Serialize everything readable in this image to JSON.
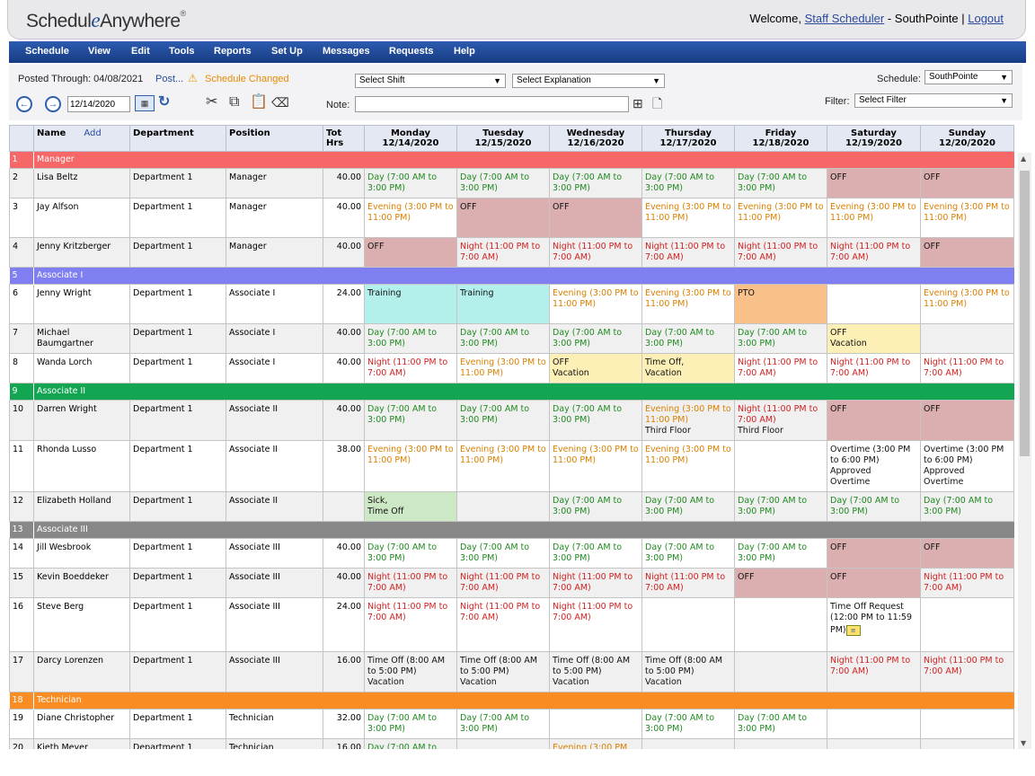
{
  "app": {
    "logo_pre": "Schedul",
    "logo_e": "e",
    "logo_post": "Anywhere",
    "logo_reg": "®",
    "welcome_prefix": "Welcome, ",
    "user": "Staff Scheduler",
    "location_text": " - SouthPointe | ",
    "logout": "Logout"
  },
  "menu": [
    "Schedule",
    "View",
    "Edit",
    "Tools",
    "Reports",
    "Set Up",
    "Messages",
    "Requests",
    "Help"
  ],
  "toolbar": {
    "posted_through": "Posted Through: 04/08/2021",
    "post_link": "Post...",
    "warning_icon": "warning-icon",
    "schedule_changed": "Schedule Changed",
    "select_shift": "Select Shift",
    "select_explanation": "Select Explanation",
    "schedule_label": "Schedule:",
    "schedule_value": "SouthPointe",
    "date_value": "12/14/2020",
    "note_label": "Note:",
    "filter_label": "Filter:",
    "filter_value": "Select Filter"
  },
  "columns": {
    "name": "Name",
    "add": "Add",
    "department": "Department",
    "position": "Position",
    "tot_hrs": "Tot Hrs",
    "days": [
      {
        "day": "Monday",
        "date": "12/14/2020"
      },
      {
        "day": "Tuesday",
        "date": "12/15/2020"
      },
      {
        "day": "Wednesday",
        "date": "12/16/2020"
      },
      {
        "day": "Thursday",
        "date": "12/17/2020"
      },
      {
        "day": "Friday",
        "date": "12/18/2020"
      },
      {
        "day": "Saturday",
        "date": "12/19/2020"
      },
      {
        "day": "Sunday",
        "date": "12/20/2020"
      }
    ]
  },
  "colors": {
    "manager": "#f66868",
    "associate_i": "#7f7ff2",
    "associate_ii": "#13a652",
    "associate_iii": "#888888",
    "technician": "#f98d24"
  },
  "rows": [
    {
      "type": "group",
      "num": "1",
      "label": "Manager",
      "color": "#f66868"
    },
    {
      "type": "emp",
      "num": "2",
      "name": "Lisa Beltz",
      "dept": "Department 1",
      "pos": "Manager",
      "hrs": "40.00",
      "h": 32,
      "cells": [
        {
          "t": "Day (7:00 AM to 3:00 PM)",
          "c": "green"
        },
        {
          "t": "Day (7:00 AM to 3:00 PM)",
          "c": "green"
        },
        {
          "t": "Day (7:00 AM to 3:00 PM)",
          "c": "green"
        },
        {
          "t": "Day (7:00 AM to 3:00 PM)",
          "c": "green"
        },
        {
          "t": "Day (7:00 AM to 3:00 PM)",
          "c": "green"
        },
        {
          "t": "OFF",
          "c": "black",
          "bg": "off"
        },
        {
          "t": "OFF",
          "c": "black",
          "bg": "off"
        }
      ]
    },
    {
      "type": "emp",
      "num": "3",
      "name": "Jay Alfson",
      "dept": "Department 1",
      "pos": "Manager",
      "hrs": "40.00",
      "h": 44,
      "cells": [
        {
          "t": "Evening (3:00 PM to 11:00 PM)",
          "c": "orange"
        },
        {
          "t": "OFF",
          "c": "black",
          "bg": "off"
        },
        {
          "t": "OFF",
          "c": "black",
          "bg": "off"
        },
        {
          "t": "Evening (3:00 PM to 11:00 PM)",
          "c": "orange"
        },
        {
          "t": "Evening (3:00 PM to 11:00 PM)",
          "c": "orange"
        },
        {
          "t": "Evening (3:00 PM to 11:00 PM)",
          "c": "orange"
        },
        {
          "t": "Evening (3:00 PM to 11:00 PM)",
          "c": "orange"
        }
      ]
    },
    {
      "type": "emp",
      "num": "4",
      "name": "Jenny Kritzberger",
      "dept": "Department 1",
      "pos": "Manager",
      "hrs": "40.00",
      "h": 32,
      "cells": [
        {
          "t": "OFF",
          "c": "black",
          "bg": "off"
        },
        {
          "t": "Night (11:00 PM to 7:00 AM)",
          "c": "red"
        },
        {
          "t": "Night (11:00 PM to 7:00 AM)",
          "c": "red"
        },
        {
          "t": "Night (11:00 PM to 7:00 AM)",
          "c": "red"
        },
        {
          "t": "Night (11:00 PM to 7:00 AM)",
          "c": "red"
        },
        {
          "t": "Night (11:00 PM to 7:00 AM)",
          "c": "red"
        },
        {
          "t": "OFF",
          "c": "black",
          "bg": "off"
        }
      ]
    },
    {
      "type": "group",
      "num": "5",
      "label": "Associate I",
      "color": "#7f7ff2"
    },
    {
      "type": "emp",
      "num": "6",
      "name": "Jenny Wright",
      "dept": "Department 1",
      "pos": "Associate I",
      "hrs": "24.00",
      "h": 44,
      "cells": [
        {
          "t": "Training",
          "c": "black",
          "bg": "training"
        },
        {
          "t": "Training",
          "c": "black",
          "bg": "training"
        },
        {
          "t": "Evening (3:00 PM to 11:00 PM)",
          "c": "orange"
        },
        {
          "t": "Evening (3:00 PM to 11:00 PM)",
          "c": "orange"
        },
        {
          "t": "PTO",
          "c": "black",
          "bg": "pto"
        },
        {
          "t": "",
          "c": "black"
        },
        {
          "t": "Evening (3:00 PM to 11:00 PM)",
          "c": "orange"
        }
      ]
    },
    {
      "type": "emp",
      "num": "7",
      "name": "Michael Baumgartner",
      "dept": "Department 1",
      "pos": "Associate I",
      "hrs": "40.00",
      "h": 32,
      "cells": [
        {
          "t": "Day (7:00 AM to 3:00 PM)",
          "c": "green"
        },
        {
          "t": "Day (7:00 AM to 3:00 PM)",
          "c": "green"
        },
        {
          "t": "Day (7:00 AM to 3:00 PM)",
          "c": "green"
        },
        {
          "t": "Day (7:00 AM to 3:00 PM)",
          "c": "green"
        },
        {
          "t": "Day (7:00 AM to 3:00 PM)",
          "c": "green"
        },
        {
          "t": "OFF\nVacation",
          "c": "black",
          "bg": "yellow"
        },
        {
          "t": "",
          "c": "black"
        }
      ]
    },
    {
      "type": "emp",
      "num": "8",
      "name": "Wanda Lorch",
      "dept": "Department 1",
      "pos": "Associate I",
      "hrs": "40.00",
      "h": 32,
      "cells": [
        {
          "t": "Night (11:00 PM to 7:00 AM)",
          "c": "red"
        },
        {
          "t": "Evening (3:00 PM to 11:00 PM)",
          "c": "orange"
        },
        {
          "t": "OFF\nVacation",
          "c": "black",
          "bg": "yellow"
        },
        {
          "t": "Time Off,\nVacation",
          "c": "black",
          "bg": "yellow"
        },
        {
          "t": "Night (11:00 PM to 7:00 AM)",
          "c": "red"
        },
        {
          "t": "Night (11:00 PM to 7:00 AM)",
          "c": "red"
        },
        {
          "t": "Night (11:00 PM to 7:00 AM)",
          "c": "red"
        }
      ]
    },
    {
      "type": "group",
      "num": "9",
      "label": "Associate II",
      "color": "#13a652"
    },
    {
      "type": "emp",
      "num": "10",
      "name": "Darren Wright",
      "dept": "Department 1",
      "pos": "Associate II",
      "hrs": "40.00",
      "h": 44,
      "cells": [
        {
          "t": "Day (7:00 AM to 3:00 PM)",
          "c": "green"
        },
        {
          "t": "Day (7:00 AM to 3:00 PM)",
          "c": "green"
        },
        {
          "t": "Day (7:00 AM to 3:00 PM)",
          "c": "green"
        },
        {
          "t": "Evening (3:00 PM to 11:00 PM)",
          "c": "orange",
          "extra": "Third Floor"
        },
        {
          "t": "Night (11:00 PM to 7:00 AM)",
          "c": "red",
          "extra": "Third Floor"
        },
        {
          "t": "OFF",
          "c": "black",
          "bg": "off"
        },
        {
          "t": "OFF",
          "c": "black",
          "bg": "off"
        }
      ]
    },
    {
      "type": "emp",
      "num": "11",
      "name": "Rhonda Lusso",
      "dept": "Department 1",
      "pos": "Associate II",
      "hrs": "38.00",
      "h": 56,
      "cells": [
        {
          "t": "Evening (3:00 PM to 11:00 PM)",
          "c": "orange"
        },
        {
          "t": "Evening (3:00 PM to 11:00 PM)",
          "c": "orange"
        },
        {
          "t": "Evening (3:00 PM to 11:00 PM)",
          "c": "orange"
        },
        {
          "t": "Evening (3:00 PM to 11:00 PM)",
          "c": "orange"
        },
        {
          "t": "",
          "c": "black"
        },
        {
          "t": "Overtime (3:00 PM to 6:00 PM)\nApproved\nOvertime",
          "c": "black"
        },
        {
          "t": "Overtime (3:00 PM to 6:00 PM)\nApproved\nOvertime",
          "c": "black"
        }
      ]
    },
    {
      "type": "emp",
      "num": "12",
      "name": "Elizabeth Holland",
      "dept": "Department 1",
      "pos": "Associate II",
      "hrs": "",
      "h": 32,
      "cells": [
        {
          "t": "Sick,\nTime Off",
          "c": "black",
          "bg": "sick"
        },
        {
          "t": "",
          "c": "black"
        },
        {
          "t": "Day (7:00 AM to 3:00 PM)",
          "c": "green"
        },
        {
          "t": "Day (7:00 AM to 3:00 PM)",
          "c": "green"
        },
        {
          "t": "Day (7:00 AM to 3:00 PM)",
          "c": "green"
        },
        {
          "t": "Day (7:00 AM to 3:00 PM)",
          "c": "green"
        },
        {
          "t": "Day (7:00 AM to 3:00 PM)",
          "c": "green"
        }
      ]
    },
    {
      "type": "group",
      "num": "13",
      "label": "Associate III",
      "color": "#888888"
    },
    {
      "type": "emp",
      "num": "14",
      "name": "Jill Wesbrook",
      "dept": "Department 1",
      "pos": "Associate III",
      "hrs": "40.00",
      "h": 32,
      "cells": [
        {
          "t": "Day (7:00 AM to 3:00 PM)",
          "c": "green"
        },
        {
          "t": "Day (7:00 AM to 3:00 PM)",
          "c": "green"
        },
        {
          "t": "Day (7:00 AM to 3:00 PM)",
          "c": "green"
        },
        {
          "t": "Day (7:00 AM to 3:00 PM)",
          "c": "green"
        },
        {
          "t": "Day (7:00 AM to 3:00 PM)",
          "c": "green"
        },
        {
          "t": "OFF",
          "c": "black",
          "bg": "off"
        },
        {
          "t": "OFF",
          "c": "black",
          "bg": "off"
        }
      ]
    },
    {
      "type": "emp",
      "num": "15",
      "name": "Kevin Boeddeker",
      "dept": "Department 1",
      "pos": "Associate III",
      "hrs": "40.00",
      "h": 32,
      "cells": [
        {
          "t": "Night (11:00 PM to 7:00 AM)",
          "c": "red"
        },
        {
          "t": "Night (11:00 PM to 7:00 AM)",
          "c": "red"
        },
        {
          "t": "Night (11:00 PM to 7:00 AM)",
          "c": "red"
        },
        {
          "t": "Night (11:00 PM to 7:00 AM)",
          "c": "red"
        },
        {
          "t": "OFF",
          "c": "black",
          "bg": "off"
        },
        {
          "t": "OFF",
          "c": "black",
          "bg": "off"
        },
        {
          "t": "Night (11:00 PM to 7:00 AM)",
          "c": "red"
        }
      ]
    },
    {
      "type": "emp",
      "num": "16",
      "name": "Steve Berg",
      "dept": "Department 1",
      "pos": "Associate III",
      "hrs": "24.00",
      "h": 60,
      "cells": [
        {
          "t": "Night (11:00 PM to 7:00 AM)",
          "c": "red"
        },
        {
          "t": "Night (11:00 PM to 7:00 AM)",
          "c": "red"
        },
        {
          "t": "Night (11:00 PM to 7:00 AM)",
          "c": "red"
        },
        {
          "t": "",
          "c": "black"
        },
        {
          "t": "",
          "c": "black"
        },
        {
          "t": "Time Off Request (12:00 PM to 11:59 PM)",
          "c": "black",
          "icon": "request-icon"
        },
        {
          "t": "",
          "c": "black"
        }
      ]
    },
    {
      "type": "emp",
      "num": "17",
      "name": "Darcy Lorenzen",
      "dept": "Department 1",
      "pos": "Associate III",
      "hrs": "16.00",
      "h": 44,
      "cells": [
        {
          "t": "Time Off (8:00 AM to 5:00 PM)\nVacation",
          "c": "black"
        },
        {
          "t": "Time Off (8:00 AM to 5:00 PM)\nVacation",
          "c": "black"
        },
        {
          "t": "Time Off (8:00 AM to 5:00 PM)\nVacation",
          "c": "black"
        },
        {
          "t": "Time Off (8:00 AM to 5:00 PM)\nVacation",
          "c": "black"
        },
        {
          "t": "",
          "c": "black"
        },
        {
          "t": "Night (11:00 PM to 7:00 AM)",
          "c": "red"
        },
        {
          "t": "Night (11:00 PM to 7:00 AM)",
          "c": "red"
        }
      ]
    },
    {
      "type": "group",
      "num": "18",
      "label": "Technician",
      "color": "#f98d24"
    },
    {
      "type": "emp",
      "num": "19",
      "name": "Diane Christopher",
      "dept": "Department 1",
      "pos": "Technician",
      "hrs": "32.00",
      "h": 32,
      "cells": [
        {
          "t": "Day (7:00 AM to 3:00 PM)",
          "c": "green"
        },
        {
          "t": "Day (7:00 AM to 3:00 PM)",
          "c": "green"
        },
        {
          "t": "",
          "c": "black"
        },
        {
          "t": "Day (7:00 AM to 3:00 PM)",
          "c": "green"
        },
        {
          "t": "Day (7:00 AM to 3:00 PM)",
          "c": "green"
        },
        {
          "t": "",
          "c": "black"
        },
        {
          "t": "",
          "c": "black"
        }
      ]
    },
    {
      "type": "emp",
      "num": "20",
      "name": "Kieth Meyer",
      "dept": "Department 1",
      "pos": "Technician",
      "hrs": "16.00",
      "h": 32,
      "cells": [
        {
          "t": "Day (7:00 AM to",
          "c": "green"
        },
        {
          "t": "",
          "c": "black"
        },
        {
          "t": "Evening (3:00 PM",
          "c": "orange"
        },
        {
          "t": "",
          "c": "black"
        },
        {
          "t": "",
          "c": "black"
        },
        {
          "t": "",
          "c": "black"
        },
        {
          "t": "",
          "c": "black"
        }
      ]
    }
  ]
}
